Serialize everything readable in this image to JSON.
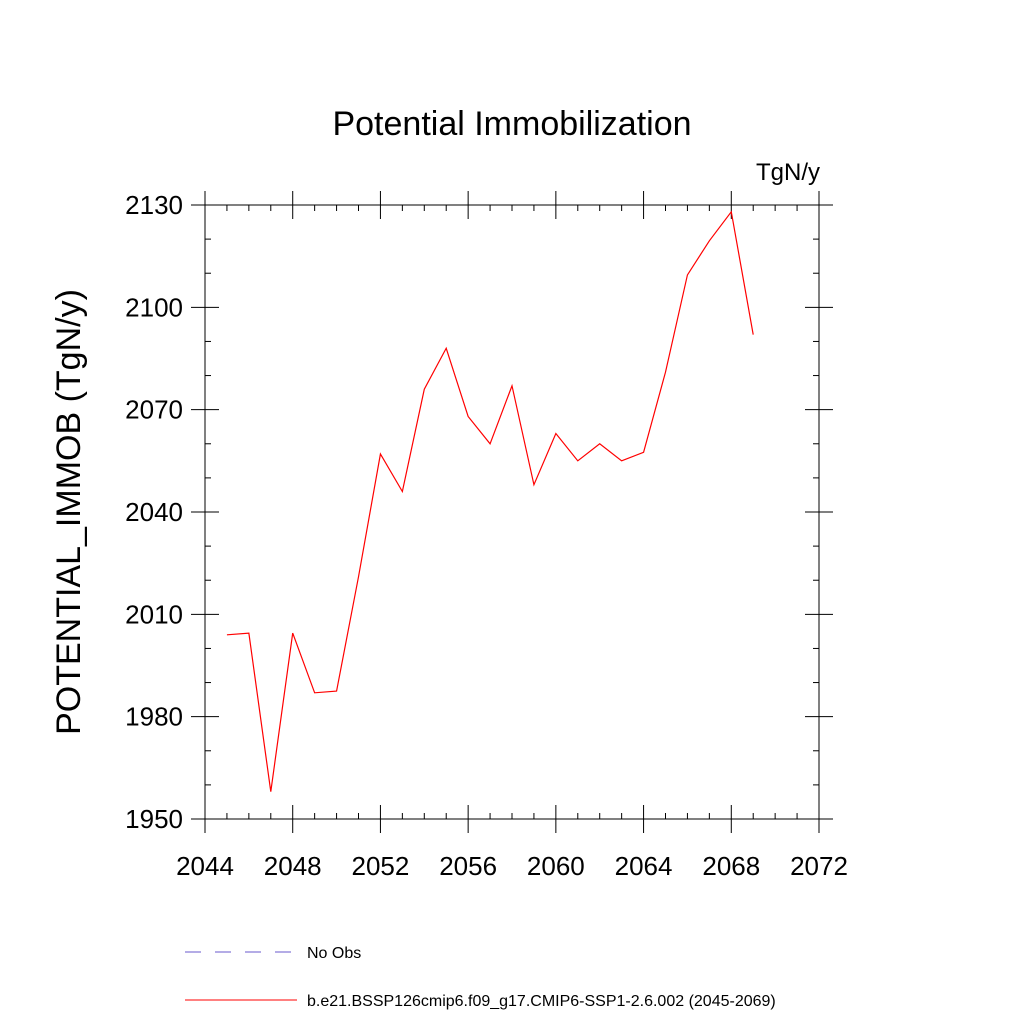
{
  "chart_data": {
    "type": "line",
    "title": "Potential Immobilization",
    "units_label": "TgN/y",
    "ylabel": "POTENTIAL_IMMOB  (TgN/y)",
    "xlabel": "",
    "xlim": [
      2044,
      2072
    ],
    "ylim": [
      1950,
      2130
    ],
    "xticks": [
      2044,
      2048,
      2052,
      2056,
      2060,
      2064,
      2068,
      2072
    ],
    "yticks": [
      1950,
      1980,
      2010,
      2040,
      2070,
      2100,
      2130
    ],
    "x_minor_step": 1,
    "y_minor_step": 10,
    "grid": false,
    "legend_position": "bottom",
    "series": [
      {
        "name": "b.e21.BSSP126cmip6.f09_g17.CMIP6-SSP1-2.6.002 (2045-2069)",
        "color": "#ff0000",
        "style": "solid",
        "x": [
          2045,
          2046,
          2047,
          2048,
          2049,
          2050,
          2051,
          2052,
          2053,
          2054,
          2055,
          2056,
          2057,
          2058,
          2059,
          2060,
          2061,
          2062,
          2063,
          2064,
          2065,
          2066,
          2067,
          2068,
          2069
        ],
        "y": [
          2004,
          2004.5,
          1958,
          2004.5,
          1987,
          1987.5,
          2021,
          2057,
          2046,
          2076,
          2088,
          2068,
          2060,
          2077,
          2048,
          2063,
          2055,
          2060,
          2055,
          2057.5,
          2081,
          2109.5,
          2119.5,
          2128,
          2092
        ]
      },
      {
        "name": "No Obs",
        "color": "#6a5acd",
        "style": "dashed",
        "x": [],
        "y": []
      }
    ]
  }
}
